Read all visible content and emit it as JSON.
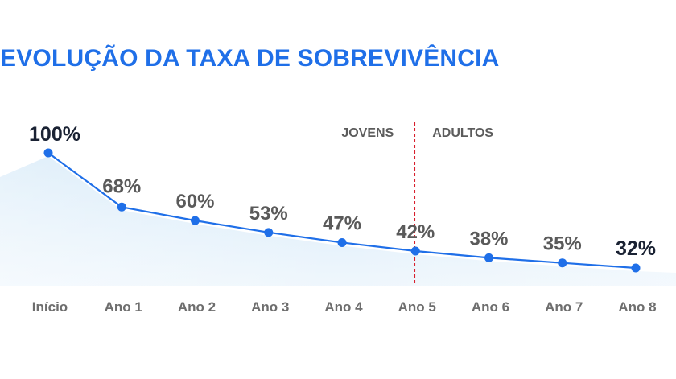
{
  "title": "EVOLUÇÃO DA TAXA DE SOBREVIVÊNCIA",
  "chart_data": {
    "type": "line",
    "title": "EVOLUÇÃO DA TAXA DE SOBREVIVÊNCIA",
    "categories": [
      "Início",
      "Ano 1",
      "Ano 2",
      "Ano 3",
      "Ano 4",
      "Ano 5",
      "Ano 6",
      "Ano 7",
      "Ano 8"
    ],
    "values": [
      100,
      68,
      60,
      53,
      47,
      42,
      38,
      35,
      32
    ],
    "data_labels": [
      "100%",
      "68%",
      "60%",
      "53%",
      "47%",
      "42%",
      "38%",
      "35%",
      "32%"
    ],
    "ylim": [
      0,
      100
    ],
    "grid": false,
    "divider": {
      "after_category": "Ano 5",
      "left_label": "JOVENS",
      "right_label": "ADULTOS"
    },
    "colors": {
      "line": "#1f6fe8",
      "title": "#1f6fe8",
      "divider": "#d81e2c",
      "area": "#cfe6f7",
      "label": "#5a5a5a",
      "label_emphasis": "#1a2233"
    }
  }
}
